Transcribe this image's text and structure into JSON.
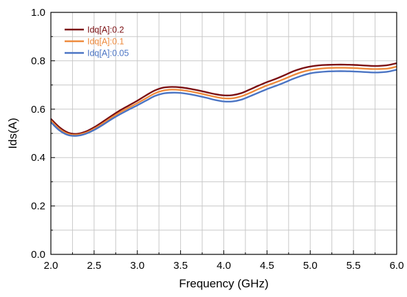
{
  "chart_data": {
    "type": "line",
    "xlabel": "Frequency (GHz)",
    "ylabel": "Ids(A)",
    "xlim": [
      2.0,
      6.0
    ],
    "ylim": [
      0.0,
      1.0
    ],
    "x_ticks": [
      "2.0",
      "2.5",
      "3.0",
      "3.5",
      "4.0",
      "4.5",
      "5.0",
      "5.5",
      "6.0"
    ],
    "y_ticks": [
      "0.0",
      "0.2",
      "0.4",
      "0.6",
      "0.8",
      "1.0"
    ],
    "grid": true,
    "legend_position": "top-left",
    "series": [
      {
        "name": "Idq[A]:0.2",
        "color": "#7b0f12",
        "points": [
          [
            2.0,
            0.56
          ],
          [
            2.1,
            0.525
          ],
          [
            2.2,
            0.503
          ],
          [
            2.3,
            0.498
          ],
          [
            2.4,
            0.507
          ],
          [
            2.5,
            0.525
          ],
          [
            2.6,
            0.548
          ],
          [
            2.7,
            0.572
          ],
          [
            2.8,
            0.595
          ],
          [
            2.9,
            0.615
          ],
          [
            3.0,
            0.635
          ],
          [
            3.1,
            0.657
          ],
          [
            3.2,
            0.677
          ],
          [
            3.3,
            0.689
          ],
          [
            3.4,
            0.692
          ],
          [
            3.5,
            0.69
          ],
          [
            3.6,
            0.685
          ],
          [
            3.7,
            0.678
          ],
          [
            3.8,
            0.67
          ],
          [
            3.9,
            0.662
          ],
          [
            4.0,
            0.657
          ],
          [
            4.1,
            0.658
          ],
          [
            4.2,
            0.666
          ],
          [
            4.3,
            0.681
          ],
          [
            4.4,
            0.697
          ],
          [
            4.5,
            0.712
          ],
          [
            4.6,
            0.725
          ],
          [
            4.7,
            0.74
          ],
          [
            4.8,
            0.756
          ],
          [
            4.9,
            0.768
          ],
          [
            5.0,
            0.776
          ],
          [
            5.1,
            0.781
          ],
          [
            5.2,
            0.783
          ],
          [
            5.3,
            0.784
          ],
          [
            5.4,
            0.784
          ],
          [
            5.5,
            0.783
          ],
          [
            5.6,
            0.781
          ],
          [
            5.7,
            0.779
          ],
          [
            5.8,
            0.779
          ],
          [
            5.9,
            0.782
          ],
          [
            6.0,
            0.79
          ]
        ]
      },
      {
        "name": "Idq[A]:0.1",
        "color": "#ee8a3c",
        "points": [
          [
            2.0,
            0.553
          ],
          [
            2.1,
            0.518
          ],
          [
            2.2,
            0.498
          ],
          [
            2.3,
            0.494
          ],
          [
            2.4,
            0.502
          ],
          [
            2.5,
            0.519
          ],
          [
            2.6,
            0.541
          ],
          [
            2.7,
            0.565
          ],
          [
            2.8,
            0.587
          ],
          [
            2.9,
            0.606
          ],
          [
            3.0,
            0.625
          ],
          [
            3.1,
            0.645
          ],
          [
            3.2,
            0.665
          ],
          [
            3.3,
            0.677
          ],
          [
            3.4,
            0.681
          ],
          [
            3.5,
            0.679
          ],
          [
            3.6,
            0.674
          ],
          [
            3.7,
            0.667
          ],
          [
            3.8,
            0.659
          ],
          [
            3.9,
            0.651
          ],
          [
            4.0,
            0.645
          ],
          [
            4.1,
            0.645
          ],
          [
            4.2,
            0.653
          ],
          [
            4.3,
            0.667
          ],
          [
            4.4,
            0.683
          ],
          [
            4.5,
            0.698
          ],
          [
            4.6,
            0.711
          ],
          [
            4.7,
            0.725
          ],
          [
            4.8,
            0.74
          ],
          [
            4.9,
            0.753
          ],
          [
            5.0,
            0.762
          ],
          [
            5.1,
            0.767
          ],
          [
            5.2,
            0.77
          ],
          [
            5.3,
            0.771
          ],
          [
            5.4,
            0.771
          ],
          [
            5.5,
            0.77
          ],
          [
            5.6,
            0.768
          ],
          [
            5.7,
            0.766
          ],
          [
            5.8,
            0.766
          ],
          [
            5.9,
            0.768
          ],
          [
            6.0,
            0.776
          ]
        ]
      },
      {
        "name": "Idq[A]:0.05",
        "color": "#4a74c4",
        "points": [
          [
            2.0,
            0.546
          ],
          [
            2.1,
            0.512
          ],
          [
            2.2,
            0.493
          ],
          [
            2.3,
            0.49
          ],
          [
            2.4,
            0.498
          ],
          [
            2.5,
            0.514
          ],
          [
            2.6,
            0.535
          ],
          [
            2.7,
            0.558
          ],
          [
            2.8,
            0.579
          ],
          [
            2.9,
            0.598
          ],
          [
            3.0,
            0.616
          ],
          [
            3.1,
            0.635
          ],
          [
            3.2,
            0.654
          ],
          [
            3.3,
            0.665
          ],
          [
            3.4,
            0.668
          ],
          [
            3.5,
            0.667
          ],
          [
            3.6,
            0.662
          ],
          [
            3.7,
            0.655
          ],
          [
            3.8,
            0.647
          ],
          [
            3.9,
            0.638
          ],
          [
            4.0,
            0.632
          ],
          [
            4.1,
            0.632
          ],
          [
            4.2,
            0.639
          ],
          [
            4.3,
            0.653
          ],
          [
            4.4,
            0.668
          ],
          [
            4.5,
            0.683
          ],
          [
            4.6,
            0.696
          ],
          [
            4.7,
            0.71
          ],
          [
            4.8,
            0.725
          ],
          [
            4.9,
            0.738
          ],
          [
            5.0,
            0.748
          ],
          [
            5.1,
            0.753
          ],
          [
            5.2,
            0.756
          ],
          [
            5.3,
            0.757
          ],
          [
            5.4,
            0.757
          ],
          [
            5.5,
            0.756
          ],
          [
            5.6,
            0.754
          ],
          [
            5.7,
            0.752
          ],
          [
            5.8,
            0.752
          ],
          [
            5.9,
            0.755
          ],
          [
            6.0,
            0.763
          ]
        ]
      }
    ]
  }
}
